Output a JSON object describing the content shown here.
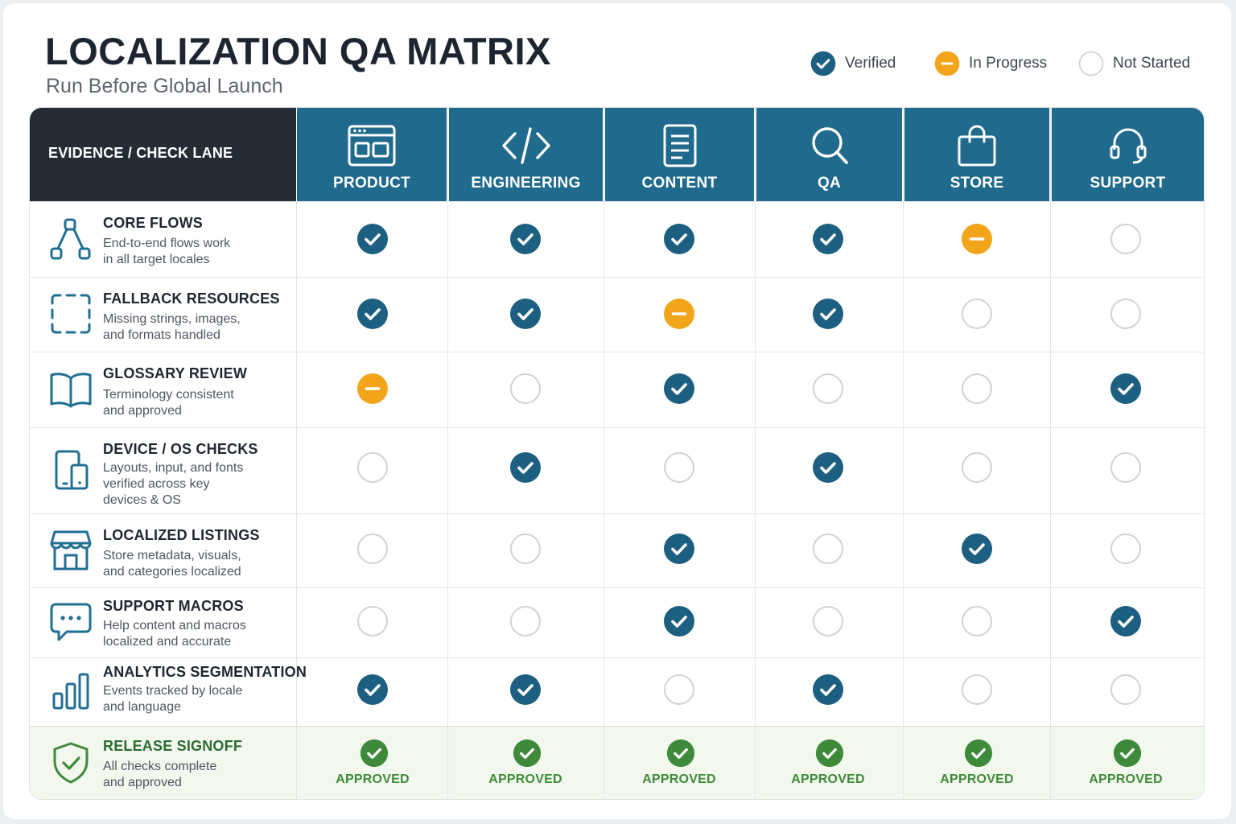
{
  "title": "LOCALIZATION QA MATRIX",
  "subtitle": "Run Before Global Launch",
  "legend": [
    {
      "status": "verified",
      "label": "Verified"
    },
    {
      "status": "progress",
      "label": "In Progress"
    },
    {
      "status": "none",
      "label": "Not Started"
    }
  ],
  "lane_header": "EVIDENCE / CHECK LANE",
  "columns": [
    {
      "label": "PRODUCT",
      "icon": "browser-window-icon"
    },
    {
      "label": "ENGINEERING",
      "icon": "code-brackets-icon"
    },
    {
      "label": "CONTENT",
      "icon": "document-icon"
    },
    {
      "label": "QA",
      "icon": "search-icon"
    },
    {
      "label": "STORE",
      "icon": "shopping-bag-icon"
    },
    {
      "label": "SUPPORT",
      "icon": "headset-icon"
    }
  ],
  "rows": [
    {
      "title": "CORE FLOWS",
      "description_lines": [
        "End-to-end flows work",
        "in all target locales"
      ],
      "icon": "flow-diagram-icon",
      "statuses": [
        "verified",
        "verified",
        "verified",
        "verified",
        "progress",
        "none"
      ]
    },
    {
      "title": "FALLBACK RESOURCES",
      "description_lines": [
        "Missing strings, images,",
        "and formats handled"
      ],
      "icon": "dashed-frame-icon",
      "statuses": [
        "verified",
        "verified",
        "progress",
        "verified",
        "none",
        "none"
      ]
    },
    {
      "title": "GLOSSARY REVIEW",
      "description_lines": [
        "Terminology consistent",
        "and approved"
      ],
      "icon": "open-book-icon",
      "statuses": [
        "progress",
        "none",
        "verified",
        "none",
        "none",
        "verified"
      ]
    },
    {
      "title": "DEVICE / OS CHECKS",
      "description_lines": [
        "Layouts, input, and fonts",
        "verified across key",
        "devices & OS"
      ],
      "icon": "devices-icon",
      "statuses": [
        "none",
        "verified",
        "none",
        "verified",
        "none",
        "none"
      ]
    },
    {
      "title": "LOCALIZED LISTINGS",
      "description_lines": [
        "Store metadata, visuals,",
        "and categories localized"
      ],
      "icon": "storefront-icon",
      "statuses": [
        "none",
        "none",
        "verified",
        "none",
        "verified",
        "none"
      ]
    },
    {
      "title": "SUPPORT MACROS",
      "description_lines": [
        "Help content and macros",
        "localized and accurate"
      ],
      "icon": "chat-bubble-icon",
      "statuses": [
        "none",
        "none",
        "verified",
        "none",
        "none",
        "verified"
      ]
    },
    {
      "title": "ANALYTICS SEGMENTATION",
      "description_lines": [
        "Events tracked by locale",
        "and language"
      ],
      "icon": "bar-chart-icon",
      "statuses": [
        "verified",
        "verified",
        "none",
        "verified",
        "none",
        "none"
      ]
    }
  ],
  "signoff": {
    "title": "RELEASE SIGNOFF",
    "description_lines": [
      "All checks complete",
      "and approved"
    ],
    "icon": "shield-check-icon",
    "labels": [
      "APPROVED",
      "APPROVED",
      "APPROVED",
      "APPROVED",
      "APPROVED",
      "APPROVED"
    ]
  },
  "colors": {
    "verified": "#1d5f80",
    "progress": "#f2a51a",
    "approved": "#3f8a3a",
    "header_blue": "#1f6a8d",
    "header_dark": "#242d36",
    "icon_blue": "#216f93"
  }
}
